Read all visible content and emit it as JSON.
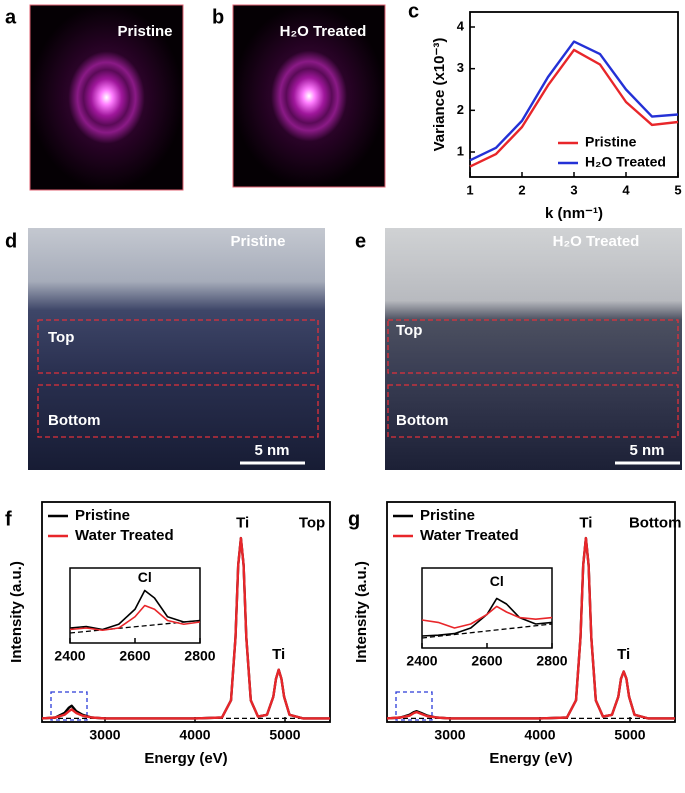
{
  "panel_labels": [
    "a",
    "b",
    "c",
    "d",
    "e",
    "f",
    "g"
  ],
  "images": {
    "a": {
      "label": "Pristine"
    },
    "b": {
      "label": "H₂O Treated"
    },
    "d": {
      "label": "Pristine",
      "regions": [
        "Top",
        "Bottom"
      ],
      "scale_bar": "5 nm"
    },
    "e": {
      "label": "H₂O Treated",
      "regions": [
        "Top",
        "Bottom"
      ],
      "scale_bar": "5 nm"
    }
  },
  "chart_data": [
    {
      "type": "line",
      "xlabel": "k (nm⁻¹)",
      "ylabel": "Variance (x10⁻³)",
      "x": [
        1,
        1.5,
        2,
        2.5,
        3,
        3.5,
        4,
        4.5,
        5
      ],
      "series": [
        {
          "name": "Pristine",
          "color": "#e8262a",
          "values": [
            0.65,
            0.95,
            1.6,
            2.6,
            3.45,
            3.1,
            2.2,
            1.65,
            1.72
          ]
        },
        {
          "name": "H₂O Treated",
          "color": "#2431d6",
          "values": [
            0.8,
            1.1,
            1.75,
            2.8,
            3.65,
            3.35,
            2.5,
            1.85,
            1.9
          ]
        }
      ],
      "xlim": [
        1,
        5
      ],
      "ylim": [
        0.4,
        4.36
      ],
      "xticks": [
        1,
        2,
        3,
        4,
        5
      ],
      "yticks": [
        1,
        2,
        3,
        4
      ],
      "legend": "lower right"
    },
    {
      "type": "line",
      "xlabel": "Energy (eV)",
      "ylabel": "Intensity (a.u.)",
      "annotations": [
        "Ti",
        "Ti",
        "Top"
      ],
      "x": [
        2300,
        2450,
        2550,
        2600,
        2630,
        2680,
        2750,
        2850,
        3000,
        3500,
        4000,
        4300,
        4400,
        4450,
        4480,
        4510,
        4540,
        4570,
        4620,
        4700,
        4800,
        4870,
        4900,
        4930,
        4960,
        4990,
        5050,
        5200,
        5500
      ],
      "series": [
        {
          "name": "Pristine",
          "color": "#000000",
          "values": [
            0,
            0.005,
            0.03,
            0.06,
            0.07,
            0.04,
            0.02,
            0.005,
            0,
            0,
            0,
            0.005,
            0.1,
            0.45,
            0.85,
            1,
            0.85,
            0.45,
            0.1,
            0.01,
            0.02,
            0.12,
            0.22,
            0.27,
            0.22,
            0.12,
            0.02,
            0,
            0
          ]
        },
        {
          "name": "Water Treated",
          "color": "#e8262a",
          "values": [
            0,
            0.005,
            0.02,
            0.04,
            0.05,
            0.03,
            0.015,
            0.005,
            0,
            0,
            0,
            0.005,
            0.1,
            0.45,
            0.85,
            1,
            0.85,
            0.45,
            0.1,
            0.01,
            0.02,
            0.12,
            0.22,
            0.27,
            0.22,
            0.12,
            0.02,
            0,
            0
          ]
        }
      ],
      "xlim": [
        2300,
        5500
      ],
      "ylim": [
        -0.02,
        1.2
      ],
      "xticks": [
        3000,
        4000,
        5000
      ],
      "legend": "upper left"
    },
    {
      "type": "line",
      "annotations": [
        "Cl"
      ],
      "x": [
        2400,
        2450,
        2500,
        2550,
        2600,
        2630,
        2660,
        2700,
        2750,
        2800
      ],
      "series": [
        {
          "color": "#000000",
          "values": [
            0.2,
            0.22,
            0.18,
            0.25,
            0.45,
            0.7,
            0.6,
            0.35,
            0.28,
            0.3
          ]
        },
        {
          "color": "#e8262a",
          "values": [
            0.18,
            0.2,
            0.17,
            0.2,
            0.35,
            0.5,
            0.45,
            0.3,
            0.25,
            0.28
          ]
        }
      ],
      "xlim": [
        2400,
        2800
      ],
      "ylim": [
        0,
        1
      ],
      "xticks": [
        2400,
        2600,
        2800
      ]
    },
    {
      "type": "line",
      "xlabel": "Energy (eV)",
      "ylabel": "Intensity (a.u.)",
      "annotations": [
        "Ti",
        "Ti",
        "Bottom"
      ],
      "x": [
        2300,
        2450,
        2550,
        2600,
        2630,
        2680,
        2750,
        2850,
        3000,
        3500,
        4000,
        4300,
        4400,
        4450,
        4480,
        4510,
        4540,
        4570,
        4620,
        4700,
        4800,
        4870,
        4900,
        4930,
        4960,
        4990,
        5050,
        5200,
        5500
      ],
      "series": [
        {
          "name": "Pristine",
          "color": "#000000",
          "values": [
            0,
            0.005,
            0.02,
            0.035,
            0.04,
            0.03,
            0.015,
            0.005,
            0,
            0,
            0,
            0.005,
            0.1,
            0.45,
            0.85,
            1,
            0.85,
            0.45,
            0.1,
            0.01,
            0.02,
            0.12,
            0.22,
            0.26,
            0.22,
            0.12,
            0.02,
            0,
            0
          ]
        },
        {
          "name": "Water Treated",
          "color": "#e8262a",
          "values": [
            0,
            0.005,
            0.015,
            0.03,
            0.035,
            0.025,
            0.012,
            0.005,
            0,
            0,
            0,
            0.005,
            0.1,
            0.45,
            0.85,
            1,
            0.85,
            0.45,
            0.1,
            0.01,
            0.02,
            0.12,
            0.22,
            0.26,
            0.22,
            0.12,
            0.02,
            0,
            0
          ]
        }
      ],
      "xlim": [
        2300,
        5500
      ],
      "ylim": [
        -0.02,
        1.2
      ],
      "xticks": [
        3000,
        4000,
        5000
      ],
      "legend": "upper left"
    },
    {
      "type": "line",
      "annotations": [
        "Cl"
      ],
      "x": [
        2400,
        2450,
        2500,
        2550,
        2600,
        2630,
        2660,
        2700,
        2750,
        2800
      ],
      "series": [
        {
          "color": "#000000",
          "values": [
            0.15,
            0.16,
            0.18,
            0.25,
            0.42,
            0.62,
            0.55,
            0.38,
            0.3,
            0.32
          ]
        },
        {
          "color": "#e8262a",
          "values": [
            0.35,
            0.32,
            0.25,
            0.3,
            0.42,
            0.52,
            0.45,
            0.38,
            0.36,
            0.38
          ]
        }
      ],
      "xlim": [
        2400,
        2800
      ],
      "ylim": [
        0,
        1
      ],
      "xticks": [
        2400,
        2600,
        2800
      ]
    }
  ]
}
